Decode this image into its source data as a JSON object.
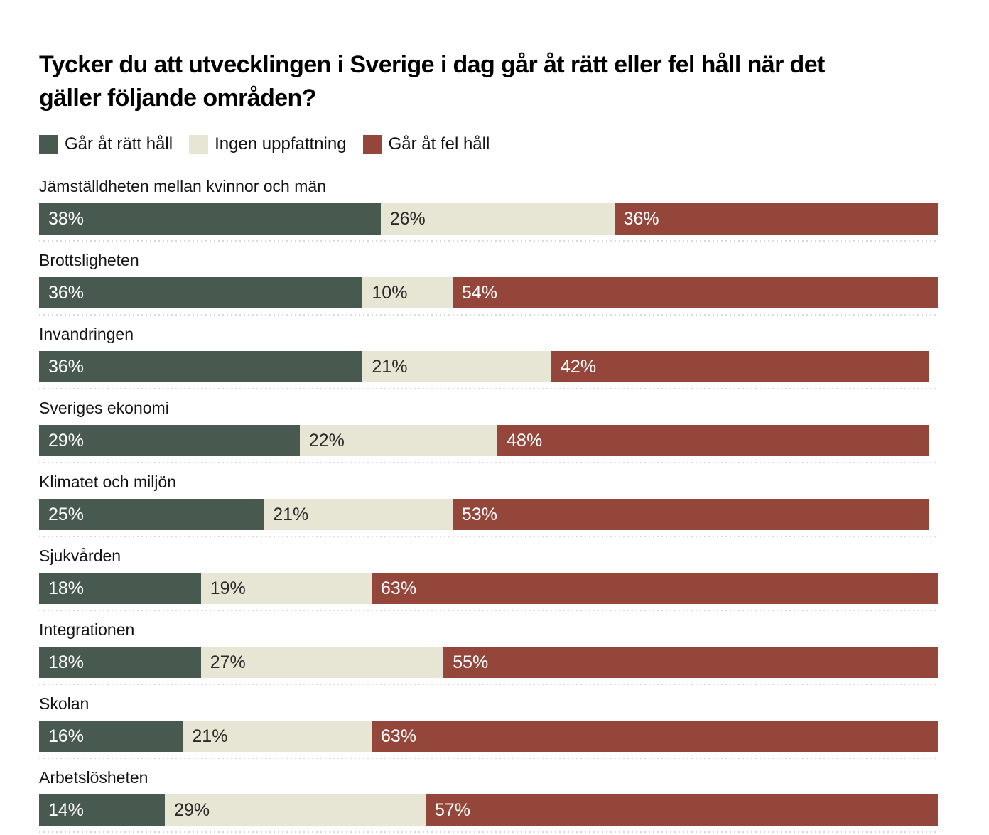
{
  "title": {
    "full": "Tycker du att utvecklingen i Sverige i dag går åt rätt eller fel håll när det gäller följande områden?",
    "lines": [
      "Tycker du att utvecklingen i Sverige i dag går åt rätt eller fel håll när det",
      "gäller följande områden?"
    ]
  },
  "chart_data": {
    "type": "bar",
    "orientation": "horizontal",
    "stacked": true,
    "legend_position": "top",
    "xlim": [
      0,
      100
    ],
    "value_suffix": "%",
    "categories": [
      "Jämställdheten mellan kvinnor och män",
      "Brottsligheten",
      "Invandringen",
      "Sveriges ekonomi",
      "Klimatet och miljön",
      "Sjukvården",
      "Integrationen",
      "Skolan",
      "Arbetslösheten"
    ],
    "series": [
      {
        "name": "Går åt rätt håll",
        "color": "#485a50",
        "text_color": "#ffffff",
        "values": [
          38,
          36,
          36,
          29,
          25,
          18,
          18,
          16,
          14
        ]
      },
      {
        "name": "Ingen uppfattning",
        "color": "#e7e6d4",
        "text_color": "#2a2a28",
        "values": [
          26,
          10,
          21,
          22,
          21,
          19,
          27,
          21,
          29
        ]
      },
      {
        "name": "Går åt fel håll",
        "color": "#95463b",
        "text_color": "#ffffff",
        "values": [
          36,
          54,
          42,
          48,
          53,
          63,
          55,
          63,
          57
        ]
      }
    ]
  }
}
